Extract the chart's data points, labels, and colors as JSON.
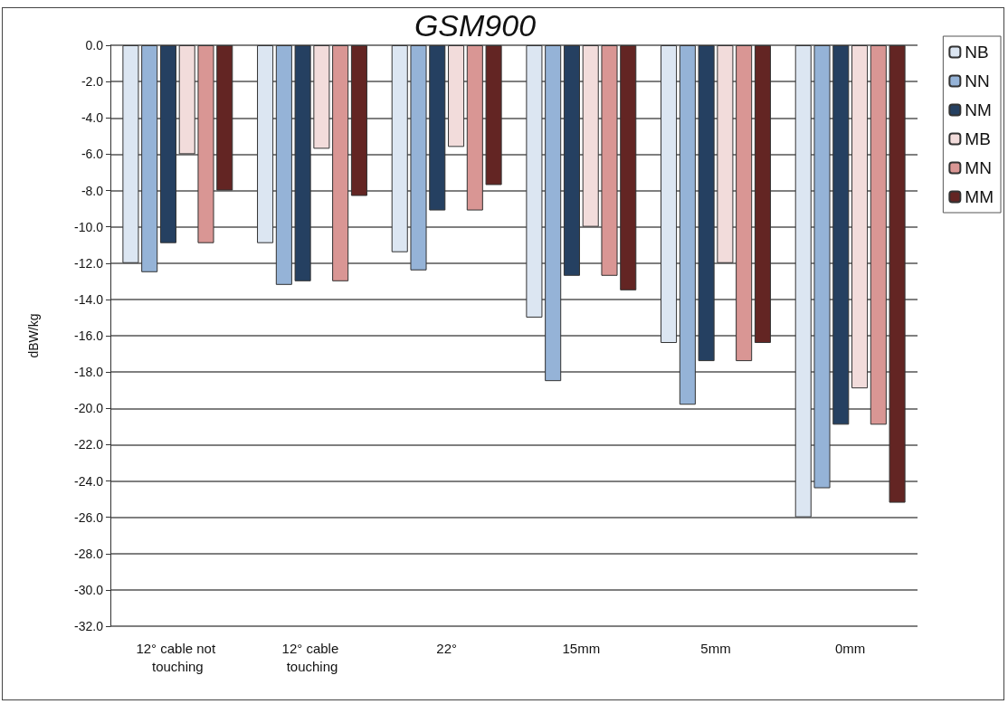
{
  "chart_data": {
    "type": "bar",
    "title": "GSM900",
    "ylabel": "dBW/kg",
    "categories": [
      "12° cable not touching",
      "12° cable touching",
      "22°",
      "15mm",
      "5mm",
      "0mm"
    ],
    "series": [
      {
        "name": "NB",
        "color": "#dce6f2",
        "values": [
          -12.0,
          -10.9,
          -11.4,
          -15.0,
          -16.4,
          -26.0
        ]
      },
      {
        "name": "NN",
        "color": "#95b3d7",
        "values": [
          -12.5,
          -13.2,
          -12.4,
          -18.5,
          -19.8,
          -24.4
        ]
      },
      {
        "name": "NM",
        "color": "#254061",
        "values": [
          -10.9,
          -13.0,
          -9.1,
          -12.7,
          -17.4,
          -20.9
        ]
      },
      {
        "name": "MB",
        "color": "#f2dcdb",
        "values": [
          -6.0,
          -5.7,
          -5.6,
          -10.0,
          -12.0,
          -18.9
        ]
      },
      {
        "name": "MN",
        "color": "#d99694",
        "values": [
          -10.9,
          -13.0,
          -9.1,
          -12.7,
          -17.4,
          -20.9
        ]
      },
      {
        "name": "MM",
        "color": "#632523",
        "values": [
          -8.0,
          -8.3,
          -7.7,
          -13.5,
          -16.4,
          -25.2
        ]
      }
    ],
    "ylim": [
      -32,
      0
    ],
    "yticks": [
      {
        "value": -32,
        "label": "-32.0"
      },
      {
        "value": -30,
        "label": "-30.0"
      },
      {
        "value": -28,
        "label": "-28.0"
      },
      {
        "value": -26,
        "label": "-26.0"
      },
      {
        "value": -24,
        "label": "-24.0"
      },
      {
        "value": -22,
        "label": "-22.0"
      },
      {
        "value": -20,
        "label": "-20.0"
      },
      {
        "value": -18,
        "label": "-18.0"
      },
      {
        "value": -16,
        "label": "-16.0"
      },
      {
        "value": -14,
        "label": "-14.0"
      },
      {
        "value": -12,
        "label": "-12.0"
      },
      {
        "value": -10,
        "label": "-10.0"
      },
      {
        "value": -8,
        "label": "-8.0"
      },
      {
        "value": -6,
        "label": "-6.0"
      },
      {
        "value": -4,
        "label": "-4.0"
      },
      {
        "value": -2,
        "label": "-2.0"
      },
      {
        "value": 0,
        "label": "0.0"
      }
    ],
    "grid": "y",
    "legend": "top right"
  }
}
